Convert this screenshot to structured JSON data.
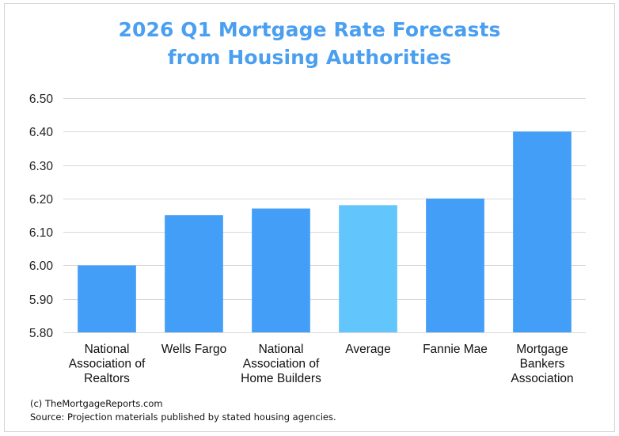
{
  "chart_data": {
    "type": "bar",
    "title_lines": [
      "2026 Q1 Mortgage Rate Forecasts",
      "from Housing Authorities"
    ],
    "categories": [
      [
        "National",
        "Association of",
        "Realtors"
      ],
      [
        "Wells Fargo"
      ],
      [
        "National",
        "Association of",
        "Home Builders"
      ],
      [
        "Average"
      ],
      [
        "Fannie Mae"
      ],
      [
        "Mortgage",
        "Bankers",
        "Association"
      ]
    ],
    "category_names": [
      "National Association of Realtors",
      "Wells Fargo",
      "National Association of Home Builders",
      "Average",
      "Fannie Mae",
      "Mortgage Bankers Association"
    ],
    "values": [
      6.0,
      6.15,
      6.17,
      6.18,
      6.2,
      6.4
    ],
    "highlight": [
      false,
      false,
      false,
      true,
      false,
      false
    ],
    "xlabel": "",
    "ylabel": "",
    "ylim": [
      5.8,
      6.5
    ],
    "yticks": [
      "6.50",
      "6.40",
      "6.30",
      "6.20",
      "6.10",
      "6.00",
      "5.90",
      "5.80"
    ],
    "ytick_values": [
      6.5,
      6.4,
      6.3,
      6.2,
      6.1,
      6.0,
      5.9,
      5.8
    ],
    "grid": true,
    "legend": "none",
    "colors": {
      "bar": "#439ef8",
      "highlight": "#62c6fc",
      "title": "#4a9ff0",
      "grid": "#d9d9d9"
    }
  },
  "footer": {
    "copyright": "(c) TheMortgageReports.com",
    "source": "Source: Projection materials published by stated housing agencies."
  }
}
